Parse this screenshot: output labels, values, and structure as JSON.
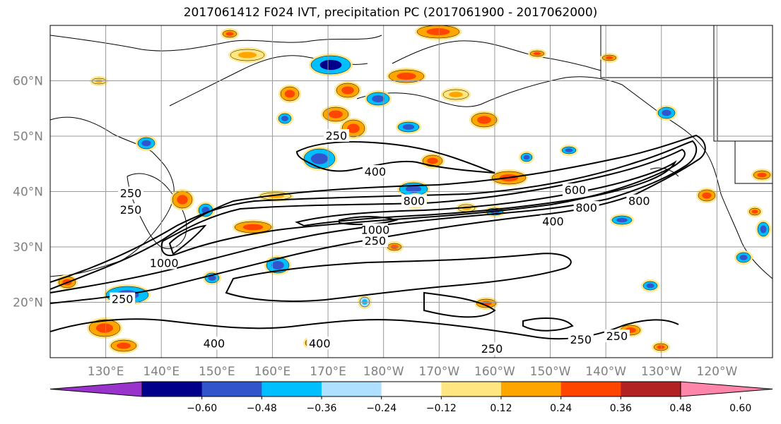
{
  "title": "2017061412 F024 IVT, precipitation PC (2017061900 - 2017062000)",
  "map": {
    "projection": "cylindrical",
    "lon_range": [
      120,
      250
    ],
    "lat_range": [
      10,
      70
    ],
    "lat_ticks": [
      {
        "value": 20,
        "label": "20°N"
      },
      {
        "value": 30,
        "label": "30°N"
      },
      {
        "value": 40,
        "label": "40°N"
      },
      {
        "value": 50,
        "label": "50°N"
      },
      {
        "value": 60,
        "label": "60°N"
      }
    ],
    "lon_ticks": [
      {
        "value": 130,
        "label": "130°E"
      },
      {
        "value": 140,
        "label": "140°E"
      },
      {
        "value": 150,
        "label": "150°E"
      },
      {
        "value": 160,
        "label": "160°E"
      },
      {
        "value": 170,
        "label": "170°E"
      },
      {
        "value": 180,
        "label": "180°W"
      },
      {
        "value": 190,
        "label": "170°W"
      },
      {
        "value": 200,
        "label": "160°W"
      },
      {
        "value": 210,
        "label": "150°W"
      },
      {
        "value": 220,
        "label": "140°W"
      },
      {
        "value": 230,
        "label": "130°W"
      },
      {
        "value": 240,
        "label": "120°W"
      }
    ],
    "grid": true,
    "ivt_contour_labels": [
      {
        "text": "250",
        "lon": 171.5,
        "lat": 50.0
      },
      {
        "text": "400",
        "lon": 178.5,
        "lat": 43.5
      },
      {
        "text": "600",
        "lon": 214.5,
        "lat": 40.2
      },
      {
        "text": "800",
        "lon": 185.5,
        "lat": 38.2
      },
      {
        "text": "800",
        "lon": 216.5,
        "lat": 37.0
      },
      {
        "text": "800",
        "lon": 226.0,
        "lat": 38.2
      },
      {
        "text": "1000",
        "lon": 178.5,
        "lat": 33.0
      },
      {
        "text": "400",
        "lon": 210.5,
        "lat": 34.5
      },
      {
        "text": "250",
        "lon": 178.5,
        "lat": 31.0
      },
      {
        "text": "250",
        "lon": 134.5,
        "lat": 39.6
      },
      {
        "text": "250",
        "lon": 134.5,
        "lat": 36.6
      },
      {
        "text": "1000",
        "lon": 140.5,
        "lat": 27.0
      },
      {
        "text": "250",
        "lon": 133.0,
        "lat": 20.5
      },
      {
        "text": "400",
        "lon": 149.5,
        "lat": 12.5
      },
      {
        "text": "400",
        "lon": 168.5,
        "lat": 12.5
      },
      {
        "text": "250",
        "lon": 199.5,
        "lat": 11.5
      },
      {
        "text": "250",
        "lon": 215.5,
        "lat": 13.2
      },
      {
        "text": "250",
        "lon": 222.0,
        "lat": 13.8
      }
    ]
  },
  "colorbar": {
    "colors": [
      "#9933cc",
      "#00008b",
      "#3355cc",
      "#00bfff",
      "#b0e0ff",
      "#ffffff",
      "#ffe680",
      "#ffa500",
      "#ff4500",
      "#b22222",
      "#ff85ab"
    ],
    "labels": [
      "−0.60",
      "−0.48",
      "−0.36",
      "−0.24",
      "−0.12",
      "0.12",
      "0.24",
      "0.36",
      "0.48",
      "0.60"
    ]
  }
}
